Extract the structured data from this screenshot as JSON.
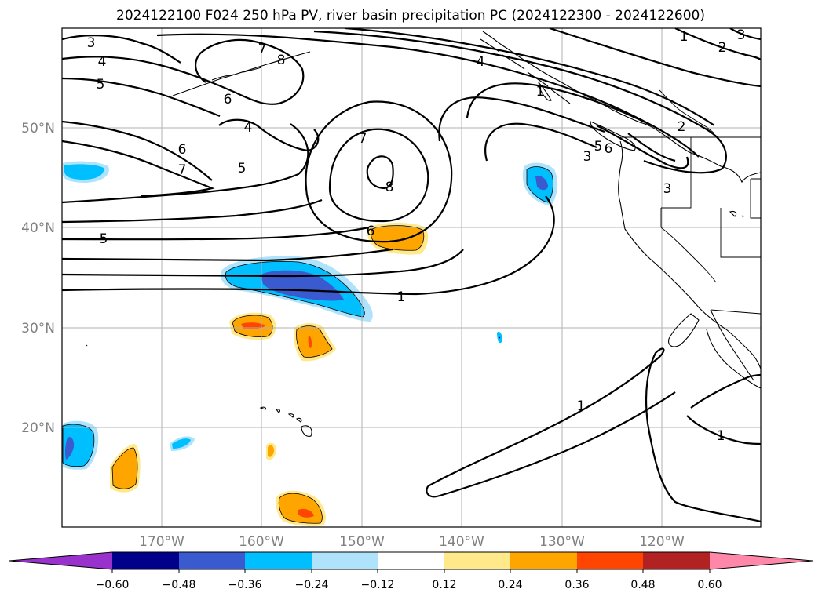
{
  "title": "2024122100 F024 250 hPa PV, river basin precipitation PC (2024122300 - 2024122600)",
  "lat_labels": [
    "50°N",
    "40°N",
    "30°N",
    "20°N"
  ],
  "lon_labels": [
    "170°W",
    "160°W",
    "150°W",
    "140°W",
    "130°W",
    "120°W"
  ],
  "colorbar": {
    "ticks": [
      "−0.60",
      "−0.48",
      "−0.36",
      "−0.24",
      "−0.12",
      "0.12",
      "0.24",
      "0.36",
      "0.48",
      "0.60"
    ],
    "colors": [
      "#9932cc",
      "#00008b",
      "#3a5bcf",
      "#00bfff",
      "#aee3fb",
      "#ffffff",
      "#ffe98a",
      "#ffa500",
      "#ff4500",
      "#b22222",
      "#ff88aa"
    ]
  },
  "contour_labels": [
    "3",
    "4",
    "5",
    "7",
    "8",
    "6",
    "4",
    "6",
    "7",
    "5",
    "7",
    "8",
    "4",
    "1",
    "1",
    "2",
    "3",
    "2",
    "3",
    "5",
    "6",
    "3",
    "6",
    "5",
    "1",
    "1",
    "1",
    "1"
  ],
  "colors": {
    "grid": "#b0b0b0",
    "axis_text": "#808080",
    "contour": "#000000"
  }
}
